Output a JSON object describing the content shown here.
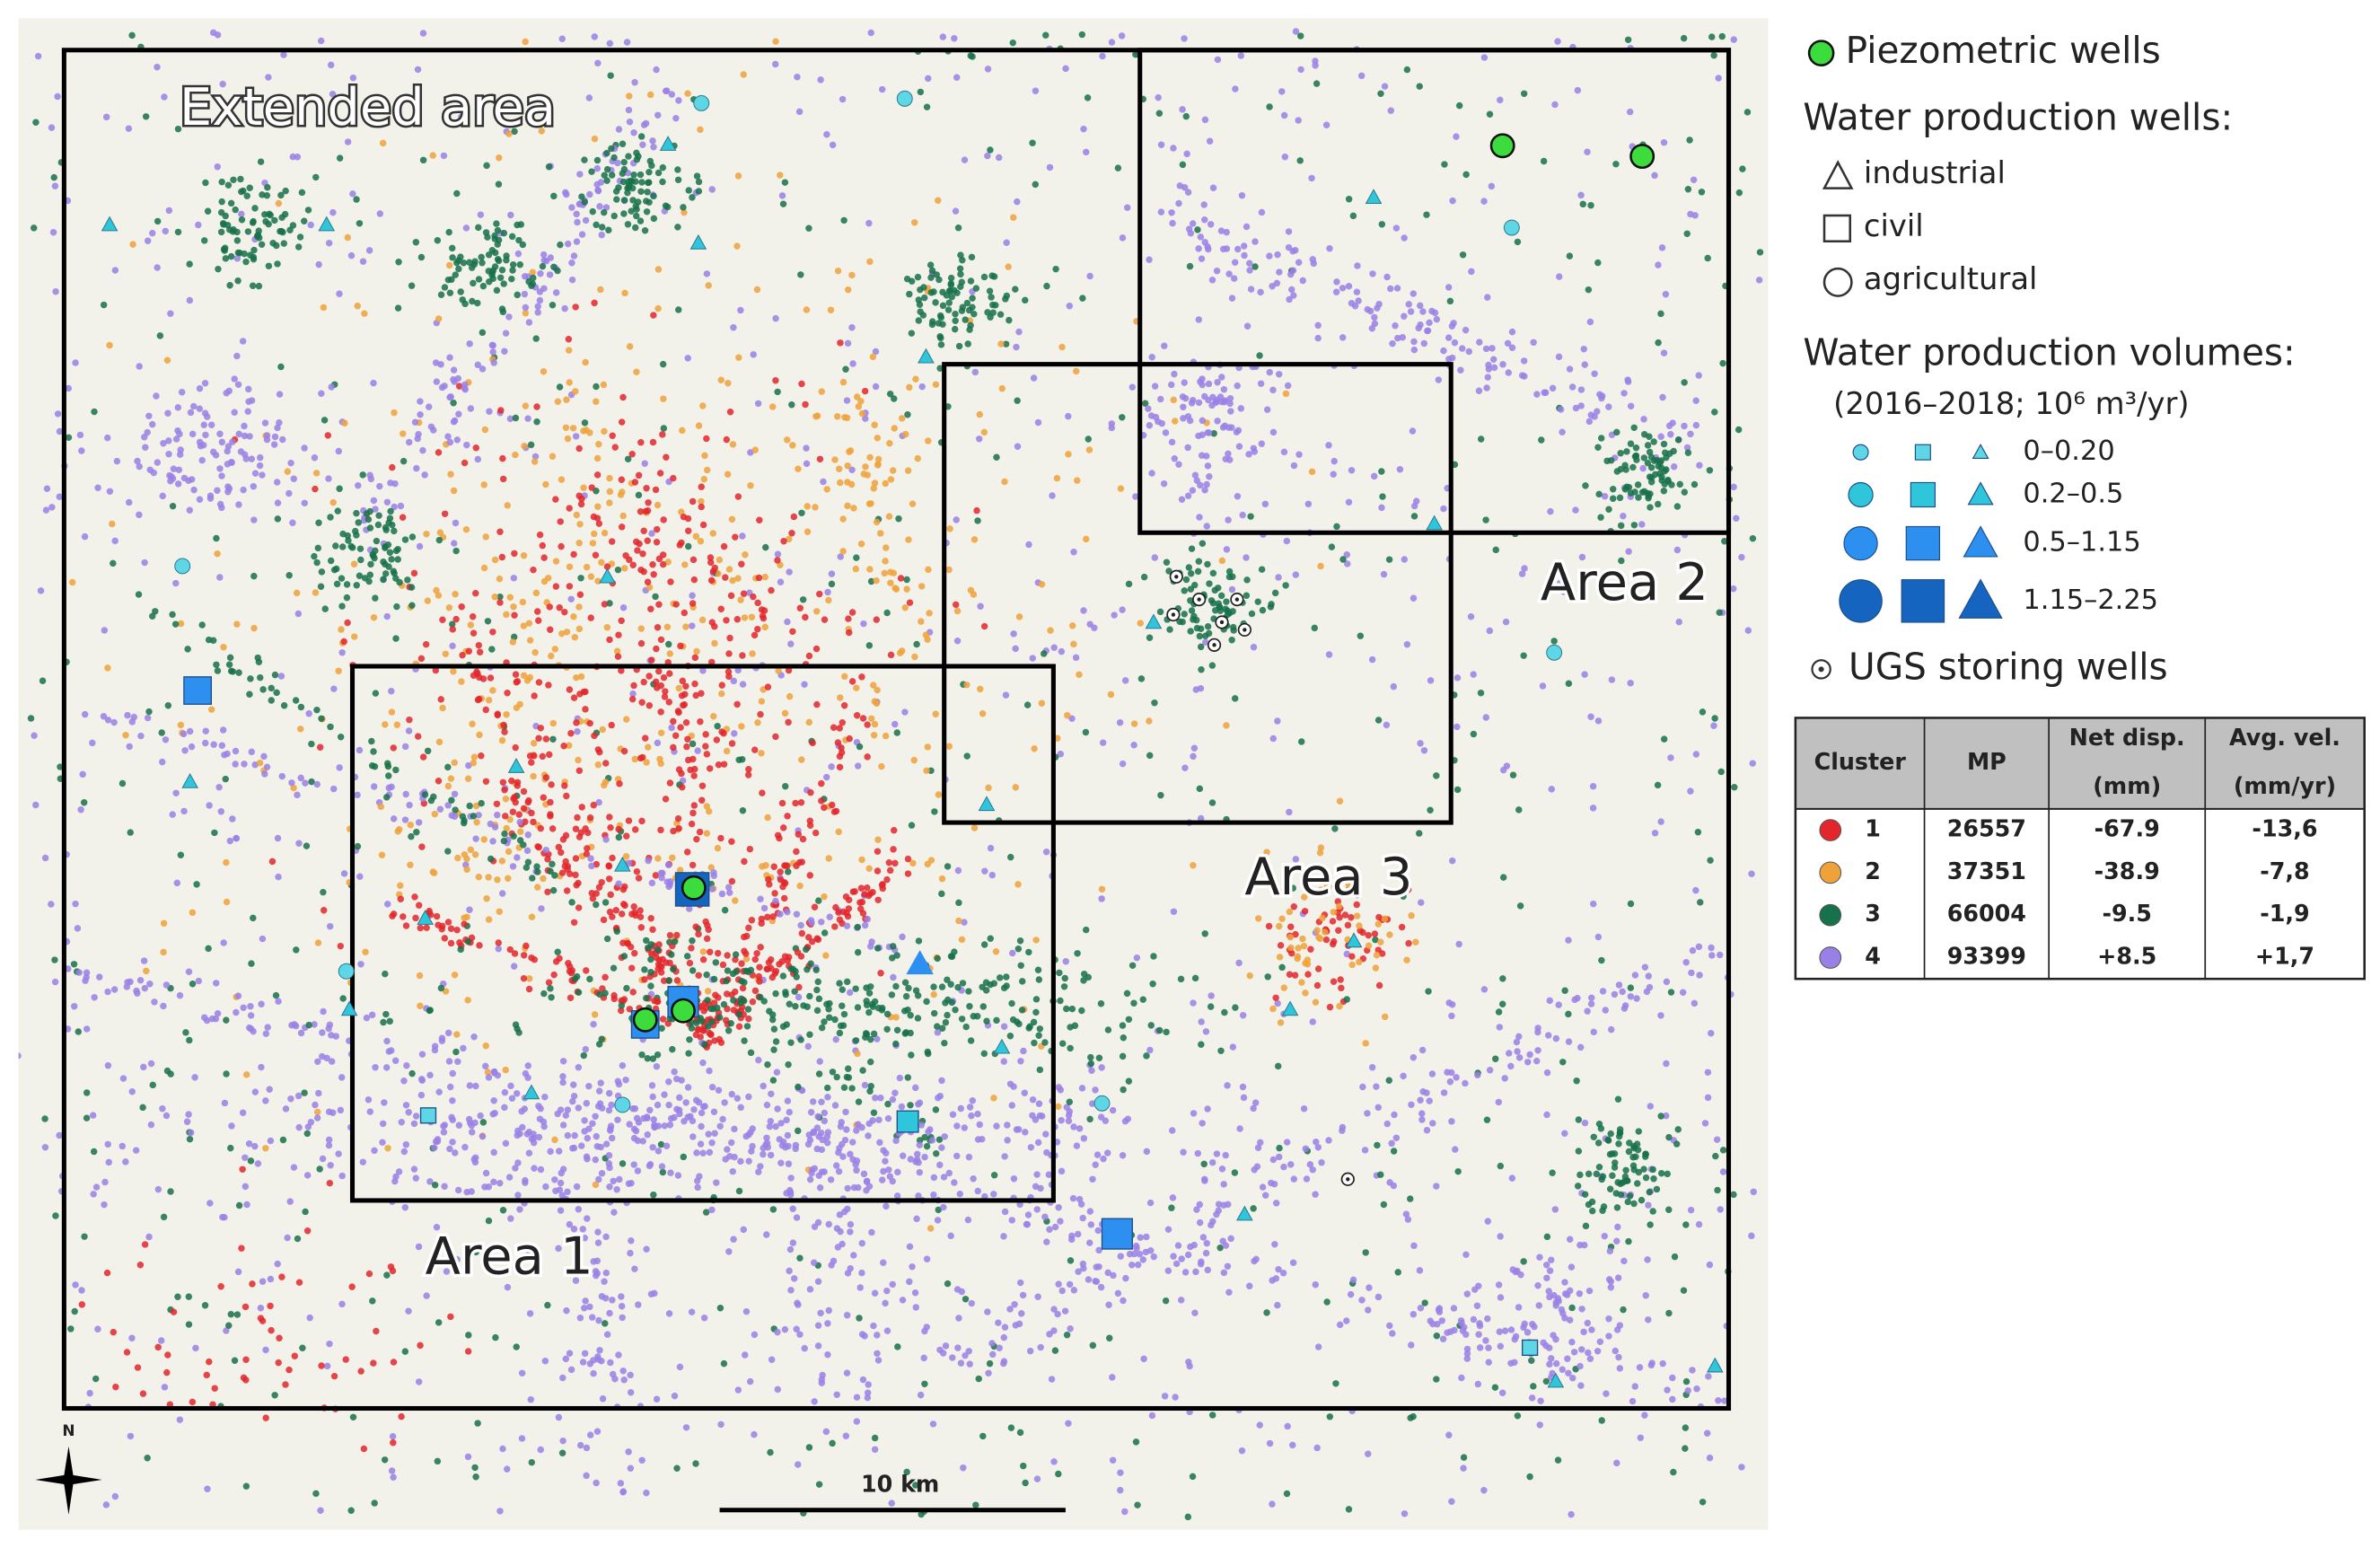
{
  "map": {
    "labels": [
      "Extended area",
      "Area 1",
      "Area 2",
      "Area 3"
    ],
    "scale_bar": "10 km",
    "north": "N"
  },
  "legend": {
    "piezometric": "Piezometric wells",
    "production_title": "Water production wells:",
    "well_types": [
      "industrial",
      "civil",
      "agricultural"
    ],
    "volumes_title": "Water production volumes:",
    "volumes_subtitle": "(2016–2018; 10⁶ m³/yr)",
    "volume_classes": [
      "0–0.20",
      "0.2–0.5",
      "0.5–1.15",
      "1.15–2.25"
    ],
    "ugs": "UGS storing wells"
  },
  "table": {
    "header": [
      "Cluster",
      "MP",
      [
        "Net disp.",
        "(mm)"
      ],
      [
        "Avg. vel.",
        "(mm/yr)"
      ]
    ],
    "rows": [
      {
        "color": "#e3262b",
        "cells": [
          "1",
          "26557",
          "-67.9",
          "-13,6"
        ]
      },
      {
        "color": "#f0a23a",
        "cells": [
          "2",
          "37351",
          "-38.9",
          "-7,8"
        ]
      },
      {
        "color": "#17714a",
        "cells": [
          "3",
          "66004",
          "-9.5",
          "-1,9"
        ]
      },
      {
        "color": "#9a80e6",
        "cells": [
          "4",
          "93399",
          "+8.5",
          "+1,7"
        ]
      }
    ]
  }
}
